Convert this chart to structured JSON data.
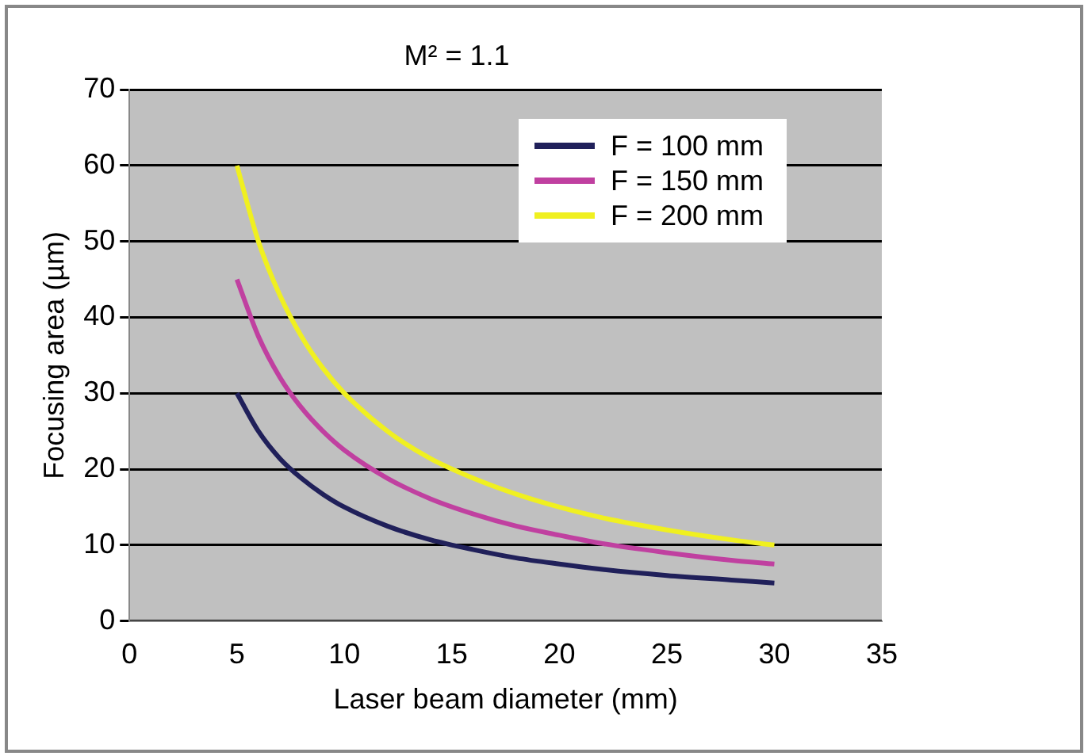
{
  "chart_data": {
    "type": "line",
    "title": "M² = 1.1",
    "xlabel": "Laser beam diameter (mm)",
    "ylabel": "Focusing area (µm)",
    "x": [
      5,
      6,
      7,
      8,
      9,
      10,
      12,
      14,
      16,
      18,
      20,
      22,
      25,
      28,
      30
    ],
    "series": [
      {
        "name": "F = 100 mm",
        "color": "#20205a",
        "values": [
          30,
          25,
          21.4,
          18.8,
          16.7,
          15,
          12.5,
          10.7,
          9.4,
          8.3,
          7.5,
          6.8,
          6,
          5.4,
          5
        ]
      },
      {
        "name": "F = 150 mm",
        "color": "#c040a0",
        "values": [
          45,
          37.5,
          32.1,
          28.1,
          25,
          22.5,
          18.8,
          16.1,
          14.1,
          12.5,
          11.3,
          10.2,
          9,
          8,
          7.5
        ]
      },
      {
        "name": "F = 200 mm",
        "color": "#f0f020",
        "values": [
          60,
          50,
          42.9,
          37.5,
          33.3,
          30,
          25,
          21.4,
          18.8,
          16.7,
          15,
          13.6,
          12,
          10.7,
          10
        ]
      }
    ],
    "xlim": [
      0,
      35
    ],
    "xticks": [
      0,
      5,
      10,
      15,
      20,
      25,
      30,
      35
    ],
    "ylim": [
      0,
      70
    ],
    "yticks": [
      0,
      10,
      20,
      30,
      40,
      50,
      60,
      70
    ],
    "grid": "y",
    "legend": "top right",
    "marker": "none",
    "line_style": "solid"
  }
}
